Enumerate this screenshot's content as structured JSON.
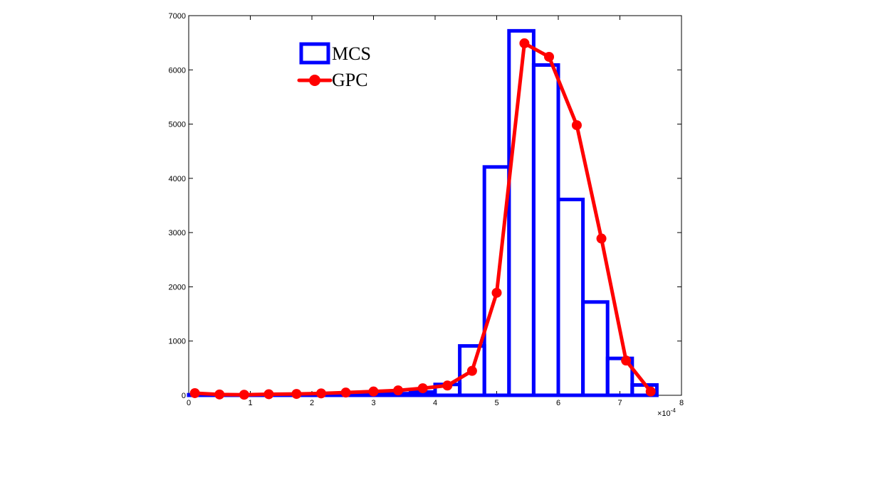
{
  "chart_data": {
    "type": "bar",
    "title": "",
    "xlabel": "",
    "ylabel": "",
    "x_exponent_label": "×10",
    "x_exponent_power": "-4",
    "xlim": [
      0,
      8
    ],
    "ylim": [
      0,
      7000
    ],
    "x_ticks": [
      0,
      1,
      2,
      3,
      4,
      5,
      6,
      7,
      8
    ],
    "x_tick_labels": [
      "0",
      "1",
      "2",
      "3",
      "4",
      "5",
      "6",
      "7",
      "8"
    ],
    "y_ticks": [
      0,
      1000,
      2000,
      3000,
      4000,
      5000,
      6000,
      7000
    ],
    "y_tick_labels": [
      "0",
      "1000",
      "2000",
      "3000",
      "4000",
      "5000",
      "6000",
      "7000"
    ],
    "grid": false,
    "legend_position": "top-left",
    "series": [
      {
        "name": "MCS",
        "kind": "histogram",
        "color": "#0000ff",
        "bin_edges": [
          0.0,
          0.4,
          0.8,
          1.2,
          1.6,
          2.0,
          2.4,
          2.8,
          3.2,
          3.6,
          4.0,
          4.4,
          4.8,
          5.2,
          5.6,
          6.0,
          6.4,
          6.8,
          7.2,
          7.6
        ],
        "values": [
          10,
          5,
          5,
          5,
          10,
          10,
          15,
          20,
          30,
          60,
          200,
          910,
          4210,
          6720,
          6090,
          3610,
          1720,
          680,
          190
        ]
      },
      {
        "name": "GPC",
        "kind": "line-marker",
        "color": "#ff0000",
        "x": [
          0.1,
          0.5,
          0.9,
          1.3,
          1.75,
          2.15,
          2.55,
          3.0,
          3.4,
          3.8,
          4.2,
          4.6,
          5.0,
          5.45,
          5.85,
          6.3,
          6.7,
          7.1,
          7.5
        ],
        "values": [
          40,
          15,
          10,
          20,
          25,
          35,
          50,
          70,
          90,
          130,
          180,
          450,
          1890,
          6490,
          6240,
          4980,
          2890,
          640,
          70
        ]
      }
    ]
  }
}
